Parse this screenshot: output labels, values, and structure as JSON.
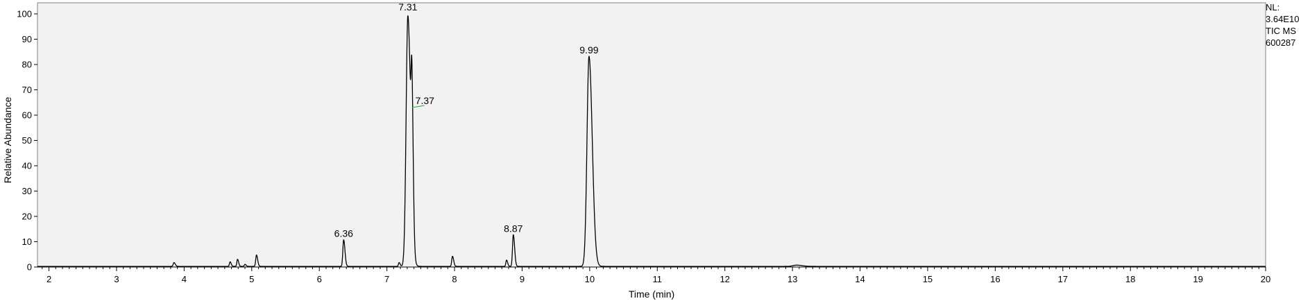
{
  "chart_data": {
    "type": "line",
    "title": "",
    "xlabel": "Time (min)",
    "ylabel": "Relative Abundance",
    "xlim": [
      1.83,
      20.0
    ],
    "ylim": [
      0,
      100
    ],
    "x_ticks": [
      2,
      3,
      4,
      5,
      6,
      7,
      8,
      9,
      10,
      11,
      12,
      13,
      14,
      15,
      16,
      17,
      18,
      19,
      20
    ],
    "y_ticks": [
      0,
      10,
      20,
      30,
      40,
      50,
      60,
      70,
      80,
      90,
      100
    ],
    "grid": false,
    "colors": {
      "plot_background": "#f2f2f2",
      "trace": "#000000",
      "annotation_line": "#3cb043"
    },
    "peaks": [
      {
        "rt": 3.85,
        "height": 1.5,
        "width": 0.012
      },
      {
        "rt": 4.68,
        "height": 1.8,
        "width": 0.01
      },
      {
        "rt": 4.79,
        "height": 2.8,
        "width": 0.01
      },
      {
        "rt": 4.9,
        "height": 0.8,
        "width": 0.01
      },
      {
        "rt": 5.07,
        "height": 4.5,
        "width": 0.011
      },
      {
        "rt": 6.36,
        "height": 10.5,
        "width": 0.012
      },
      {
        "rt": 7.18,
        "height": 1.5,
        "width": 0.01
      },
      {
        "rt": 7.31,
        "height": 99.0,
        "width": 0.026
      },
      {
        "rt": 7.37,
        "height": 46.0,
        "width": 0.012
      },
      {
        "rt": 7.97,
        "height": 4.0,
        "width": 0.011
      },
      {
        "rt": 8.77,
        "height": 2.5,
        "width": 0.01
      },
      {
        "rt": 8.87,
        "height": 12.5,
        "width": 0.012
      },
      {
        "rt": 9.99,
        "height": 83.0,
        "width": 0.03
      },
      {
        "rt": 13.06,
        "height": 0.5,
        "width": 0.05
      }
    ],
    "annotations": [
      {
        "label": "6.36",
        "x": 6.36,
        "y": 10.5
      },
      {
        "label": "7.31",
        "x": 7.31,
        "y": 100
      },
      {
        "label": "7.37",
        "x": 7.37,
        "y": 63,
        "leader": true
      },
      {
        "label": "8.87",
        "x": 8.87,
        "y": 12.5
      },
      {
        "label": "9.99",
        "x": 9.99,
        "y": 83
      }
    ],
    "nl_block": {
      "line1": "NL:",
      "line2": "3.64E10",
      "line3": "TIC  MS",
      "line4": "600287"
    }
  }
}
